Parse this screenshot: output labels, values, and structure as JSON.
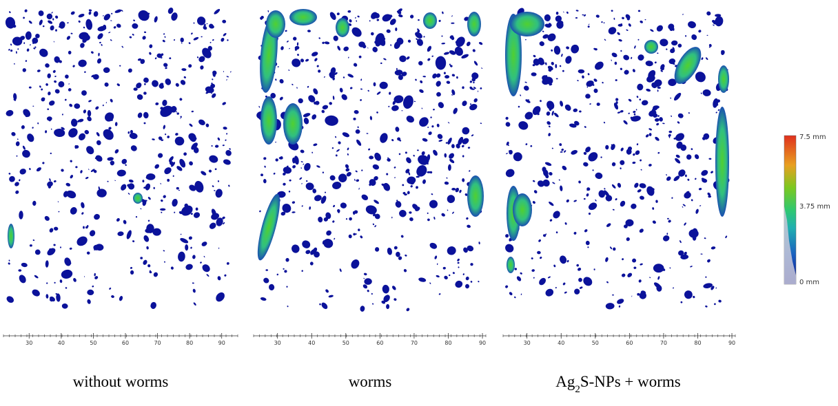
{
  "panels": [
    {
      "label": [
        "without worms"
      ],
      "scale": {
        "range": [
          22,
          95
        ],
        "ticks": [
          30,
          40,
          50,
          60,
          70,
          80,
          90
        ]
      }
    },
    {
      "label": [
        "worms"
      ],
      "scale": {
        "range": [
          23,
          91
        ],
        "ticks": [
          30,
          40,
          50,
          60,
          70,
          80,
          90
        ]
      }
    },
    {
      "label": [
        "Ag",
        "2",
        "S-NPs + worms"
      ],
      "scale": {
        "range": [
          23,
          91
        ],
        "ticks": [
          30,
          40,
          50,
          60,
          70,
          80,
          90
        ]
      }
    }
  ],
  "colorbar": {
    "labels": [
      "7.5 mm",
      "3.75 mm",
      "0 mm"
    ]
  }
}
